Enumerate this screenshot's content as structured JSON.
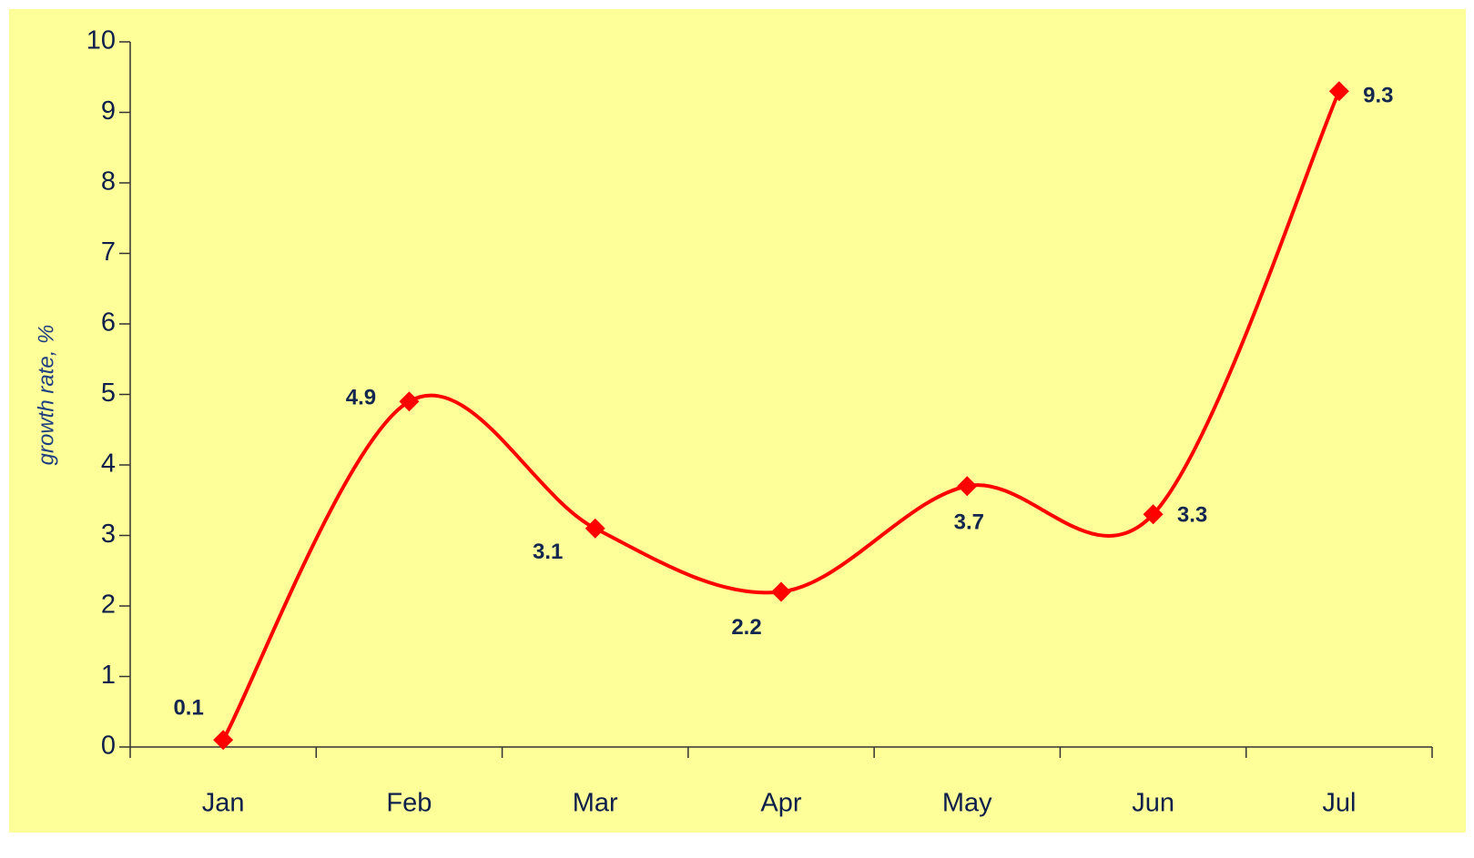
{
  "chart_data": {
    "type": "line",
    "ylabel": "growth rate, %",
    "categories": [
      "Jan",
      "Feb",
      "Mar",
      "Apr",
      "May",
      "Jun",
      "Jul"
    ],
    "values": [
      0.1,
      4.9,
      3.1,
      2.2,
      3.7,
      3.3,
      9.3
    ],
    "color": "#ff0000",
    "smooth": true,
    "ylim": [
      0,
      10
    ],
    "yticks": [
      0,
      1,
      2,
      3,
      4,
      5,
      6,
      7,
      8,
      9,
      10
    ],
    "grid": false
  }
}
